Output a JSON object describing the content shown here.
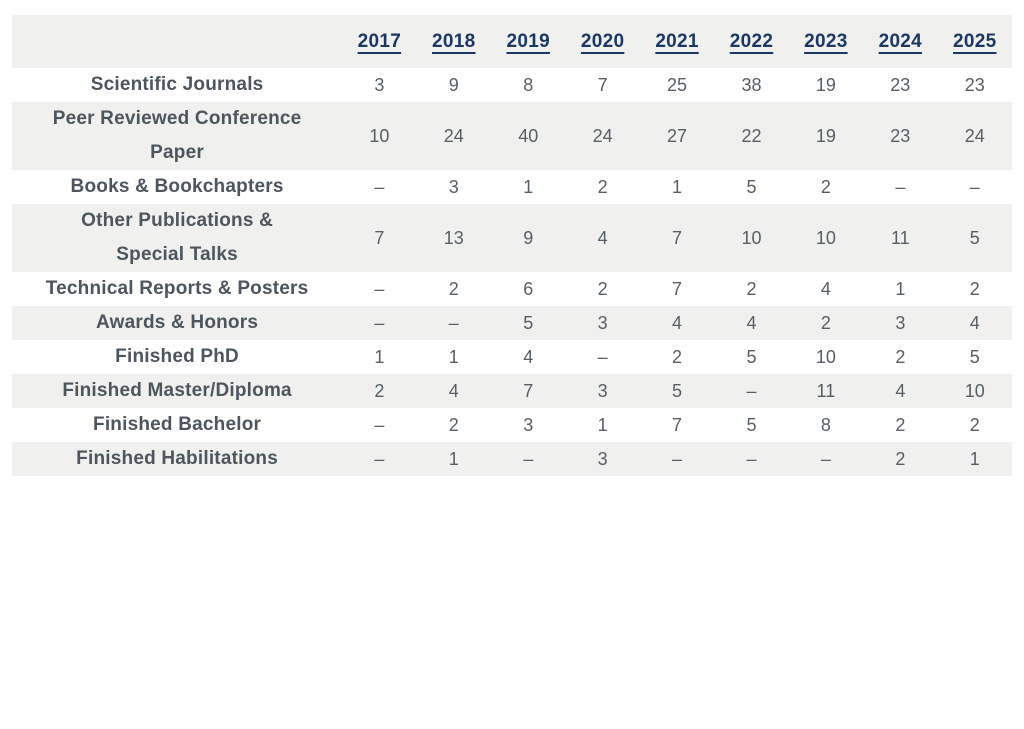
{
  "colors": {
    "page_background": "#ffffff",
    "row_alt_background": "#f0f0ef",
    "year_link": "#1b3764",
    "label_text": "#4d555e",
    "value_text": "#565e66"
  },
  "table": {
    "corner_label": "",
    "year_columns": [
      "2017",
      "2018",
      "2019",
      "2020",
      "2021",
      "2022",
      "2023",
      "2024",
      "2025"
    ],
    "empty_marker": "–",
    "rows": [
      {
        "label": "Scientific Journals",
        "label_lines": [
          "Scientific Journals"
        ],
        "values": [
          "3",
          "9",
          "8",
          "7",
          "25",
          "38",
          "19",
          "23",
          "23"
        ]
      },
      {
        "label": "Peer Reviewed Conference Paper",
        "label_lines": [
          "Peer Reviewed Conference",
          "Paper"
        ],
        "values": [
          "10",
          "24",
          "40",
          "24",
          "27",
          "22",
          "19",
          "23",
          "24"
        ]
      },
      {
        "label": "Books & Bookchapters",
        "label_lines": [
          "Books & Bookchapters"
        ],
        "values": [
          "–",
          "3",
          "1",
          "2",
          "1",
          "5",
          "2",
          "–",
          "–"
        ]
      },
      {
        "label": "Other Publications & Special Talks",
        "label_lines": [
          "Other Publications &",
          "Special Talks"
        ],
        "values": [
          "7",
          "13",
          "9",
          "4",
          "7",
          "10",
          "10",
          "11",
          "5"
        ]
      },
      {
        "label": "Technical Reports & Posters",
        "label_lines": [
          "Technical Reports & Posters"
        ],
        "values": [
          "–",
          "2",
          "6",
          "2",
          "7",
          "2",
          "4",
          "1",
          "2"
        ]
      },
      {
        "label": "Awards & Honors",
        "label_lines": [
          "Awards & Honors"
        ],
        "values": [
          "–",
          "–",
          "5",
          "3",
          "4",
          "4",
          "2",
          "3",
          "4"
        ]
      },
      {
        "label": "Finished PhD",
        "label_lines": [
          "Finished PhD"
        ],
        "values": [
          "1",
          "1",
          "4",
          "–",
          "2",
          "5",
          "10",
          "2",
          "5"
        ]
      },
      {
        "label": "Finished Master/Diploma",
        "label_lines": [
          "Finished Master/Diploma"
        ],
        "values": [
          "2",
          "4",
          "7",
          "3",
          "5",
          "–",
          "11",
          "4",
          "10"
        ]
      },
      {
        "label": "Finished Bachelor",
        "label_lines": [
          "Finished Bachelor"
        ],
        "values": [
          "–",
          "2",
          "3",
          "1",
          "7",
          "5",
          "8",
          "2",
          "2"
        ]
      },
      {
        "label": "Finished Habilitations",
        "label_lines": [
          "Finished Habilitations"
        ],
        "values": [
          "–",
          "1",
          "–",
          "3",
          "–",
          "–",
          "–",
          "2",
          "1"
        ]
      }
    ]
  },
  "chart_data": {
    "type": "table",
    "title": "",
    "categories": [
      "2017",
      "2018",
      "2019",
      "2020",
      "2021",
      "2022",
      "2023",
      "2024",
      "2025"
    ],
    "series": [
      {
        "name": "Scientific Journals",
        "values": [
          3,
          9,
          8,
          7,
          25,
          38,
          19,
          23,
          23
        ]
      },
      {
        "name": "Peer Reviewed Conference Paper",
        "values": [
          10,
          24,
          40,
          24,
          27,
          22,
          19,
          23,
          24
        ]
      },
      {
        "name": "Books & Bookchapters",
        "values": [
          null,
          3,
          1,
          2,
          1,
          5,
          2,
          null,
          null
        ]
      },
      {
        "name": "Other Publications & Special Talks",
        "values": [
          7,
          13,
          9,
          4,
          7,
          10,
          10,
          11,
          5
        ]
      },
      {
        "name": "Technical Reports & Posters",
        "values": [
          null,
          2,
          6,
          2,
          7,
          2,
          4,
          1,
          2
        ]
      },
      {
        "name": "Awards & Honors",
        "values": [
          null,
          null,
          5,
          3,
          4,
          4,
          2,
          3,
          4
        ]
      },
      {
        "name": "Finished PhD",
        "values": [
          1,
          1,
          4,
          null,
          2,
          5,
          10,
          2,
          5
        ]
      },
      {
        "name": "Finished Master/Diploma",
        "values": [
          2,
          4,
          7,
          3,
          5,
          null,
          11,
          4,
          10
        ]
      },
      {
        "name": "Finished Bachelor",
        "values": [
          null,
          2,
          3,
          1,
          7,
          5,
          8,
          2,
          2
        ]
      },
      {
        "name": "Finished Habilitations",
        "values": [
          null,
          1,
          null,
          3,
          null,
          null,
          null,
          2,
          1
        ]
      }
    ]
  }
}
